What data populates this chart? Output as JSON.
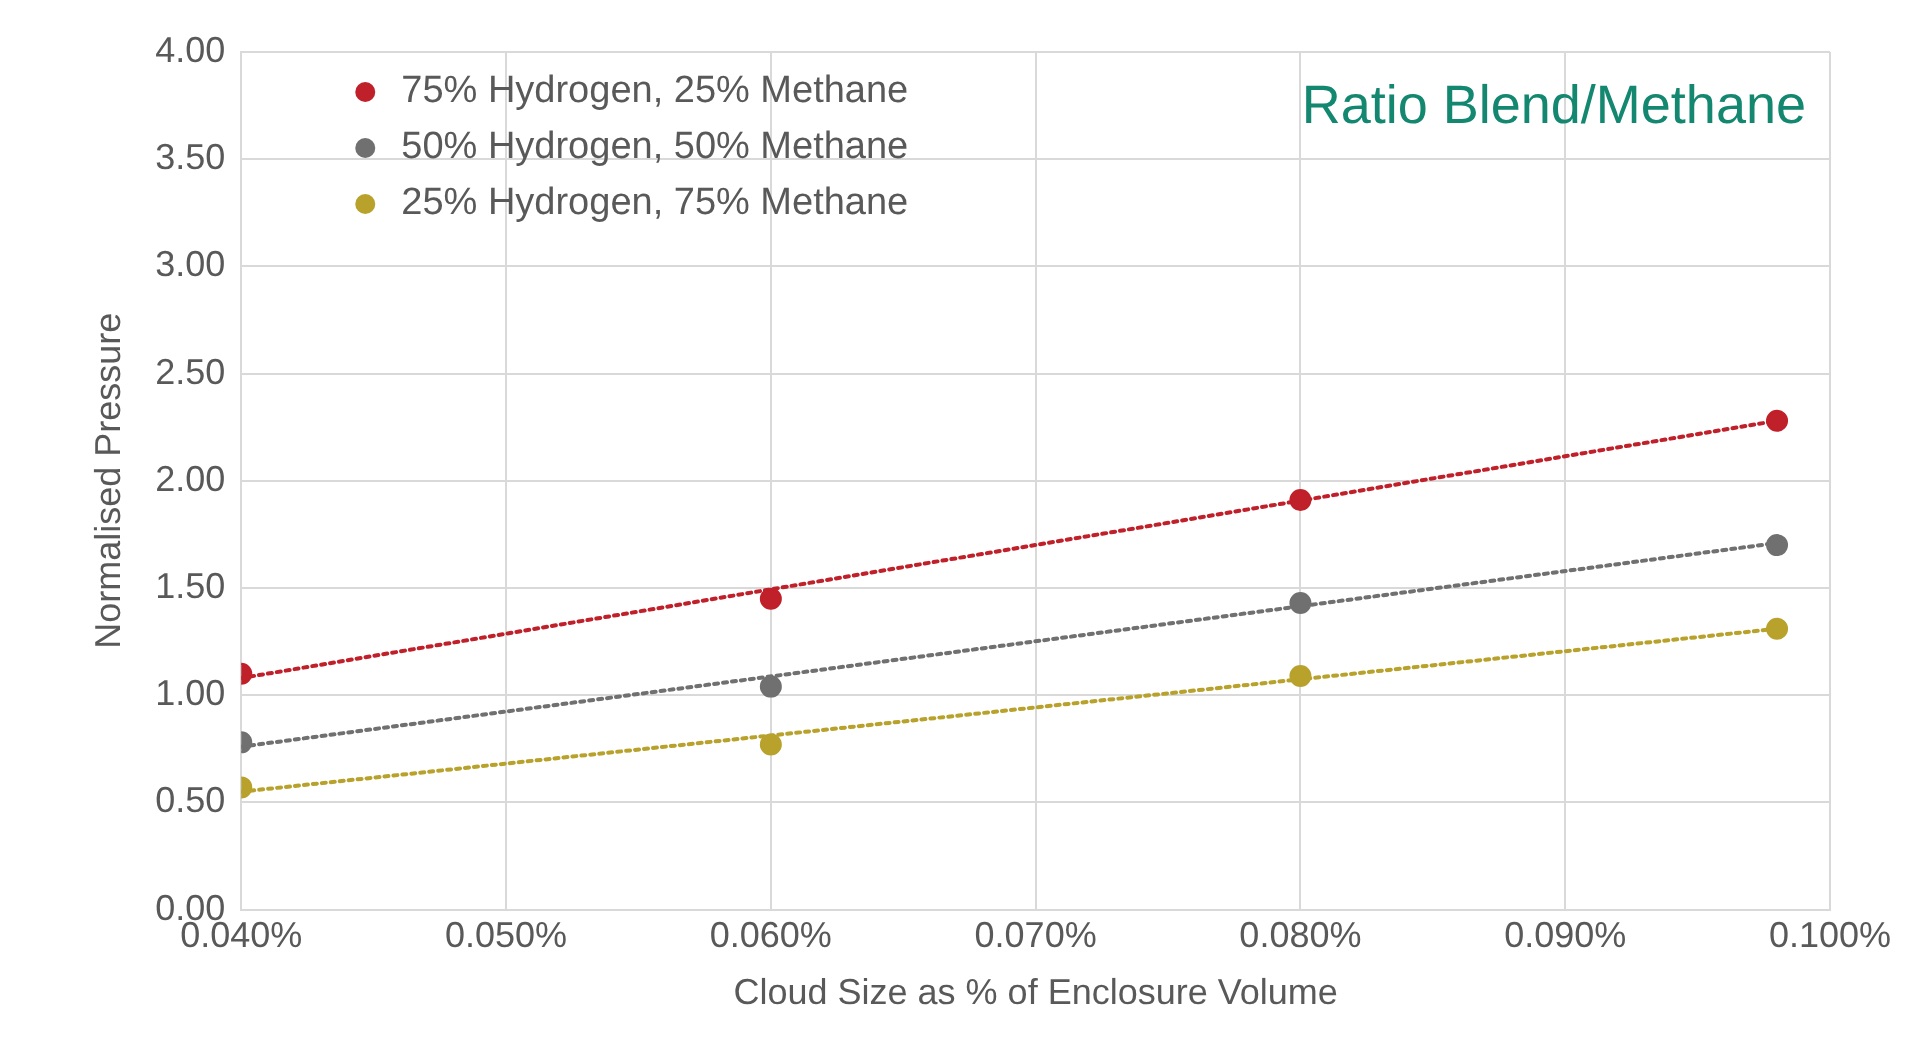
{
  "chart_data": {
    "type": "scatter",
    "xlabel": "Cloud Size as % of Enclosure Volume",
    "ylabel": "Normalised Pressure",
    "xlim": [
      0.04,
      0.1
    ],
    "xticks": [
      {
        "value": 0.04,
        "label": "0.040%"
      },
      {
        "value": 0.05,
        "label": "0.050%"
      },
      {
        "value": 0.06,
        "label": "0.060%"
      },
      {
        "value": 0.07,
        "label": "0.070%"
      },
      {
        "value": 0.08,
        "label": "0.080%"
      },
      {
        "value": 0.09,
        "label": "0.090%"
      },
      {
        "value": 0.1,
        "label": "0.100%"
      }
    ],
    "ylim": [
      0,
      4
    ],
    "yticks": [
      {
        "value": 0,
        "label": "0.00"
      },
      {
        "value": 0.5,
        "label": "0.50"
      },
      {
        "value": 1,
        "label": "1.00"
      },
      {
        "value": 1.5,
        "label": "1.50"
      },
      {
        "value": 2,
        "label": "2.00"
      },
      {
        "value": 2.5,
        "label": "2.50"
      },
      {
        "value": 3,
        "label": "3.00"
      },
      {
        "value": 3.5,
        "label": "3.50"
      },
      {
        "value": 4,
        "label": "4.00"
      }
    ],
    "grid": true,
    "legend": "top left",
    "annotations": [
      "Ratio Blend/Methane"
    ],
    "series": [
      {
        "name": "75% Hydrogen, 25% Methane",
        "type": "scatter",
        "marker": "circle",
        "color": "#c0202a",
        "x": [
          0.04,
          0.06,
          0.08,
          0.098
        ],
        "values": [
          1.1,
          1.45,
          1.91,
          2.28
        ]
      },
      {
        "name": "50% Hydrogen, 50% Methane",
        "type": "scatter",
        "marker": "circle",
        "color": "#707070",
        "x": [
          0.04,
          0.06,
          0.08,
          0.098
        ],
        "values": [
          0.78,
          1.04,
          1.43,
          1.7
        ]
      },
      {
        "name": "25% Hydrogen, 75% Methane",
        "type": "scatter",
        "marker": "circle",
        "color": "#b8a22c",
        "x": [
          0.04,
          0.06,
          0.08,
          0.098
        ],
        "values": [
          0.57,
          0.77,
          1.09,
          1.31
        ]
      },
      {
        "type": "line",
        "marker": "none",
        "line_style": "dotted",
        "color": "#c0202a",
        "x": [
          0.04,
          0.098
        ],
        "values": [
          1.08,
          2.28
        ]
      },
      {
        "type": "line",
        "marker": "none",
        "line_style": "dotted",
        "color": "#707070",
        "x": [
          0.04,
          0.098
        ],
        "values": [
          0.76,
          1.71
        ]
      },
      {
        "type": "line",
        "marker": "none",
        "line_style": "dotted",
        "color": "#b8a22c",
        "x": [
          0.04,
          0.098
        ],
        "values": [
          0.55,
          1.31
        ]
      }
    ]
  }
}
